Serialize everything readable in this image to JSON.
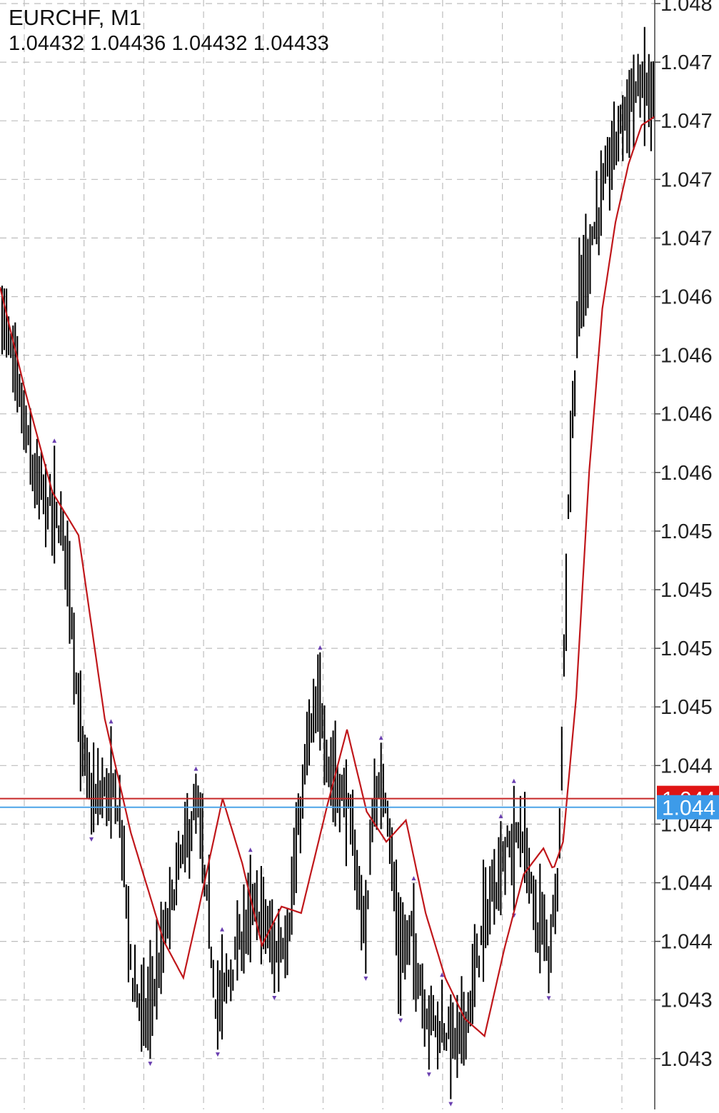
{
  "header": {
    "symbol": "EURCHF, M1",
    "ohlc": [
      "1.04432",
      "1.04436",
      "1.04432",
      "1.04433"
    ]
  },
  "chart_data": {
    "type": "bar",
    "price_tick_labels": [
      "1.048",
      "1.047",
      "1.047",
      "1.047",
      "1.047",
      "1.046",
      "1.046",
      "1.046",
      "1.046",
      "1.045",
      "1.045",
      "1.045",
      "1.045",
      "1.044",
      "1.044",
      "1.044",
      "1.044",
      "1.043",
      "1.043"
    ],
    "bid_label": "1.044",
    "ask_label": "1.044",
    "grid": true,
    "grid_style": "dashed",
    "colors": {
      "bars": "#000000",
      "moving_average": "#c0171b",
      "bid_line": "#c62828",
      "bid_badge": "#e01414",
      "ask_line": "#4da3e8",
      "ask_badge": "#3d9be9",
      "fractal_markers": "#6a3fb0",
      "grid": "#bdbdbd",
      "axis": "#444444"
    },
    "price_profile": [
      [
        0,
        1.04655
      ],
      [
        0.02,
        1.04625
      ],
      [
        0.05,
        1.04575
      ],
      [
        0.08,
        1.0456
      ],
      [
        0.1,
        1.04545
      ],
      [
        0.12,
        1.04455
      ],
      [
        0.14,
        1.04425
      ],
      [
        0.16,
        1.04432
      ],
      [
        0.18,
        1.04425
      ],
      [
        0.2,
        1.04345
      ],
      [
        0.22,
        1.04325
      ],
      [
        0.24,
        1.04348
      ],
      [
        0.27,
        1.04395
      ],
      [
        0.3,
        1.04425
      ],
      [
        0.33,
        1.0433
      ],
      [
        0.36,
        1.04355
      ],
      [
        0.38,
        1.04375
      ],
      [
        0.4,
        1.04375
      ],
      [
        0.42,
        1.04355
      ],
      [
        0.44,
        1.04368
      ],
      [
        0.47,
        1.04455
      ],
      [
        0.49,
        1.04472
      ],
      [
        0.5,
        1.04445
      ],
      [
        0.53,
        1.04425
      ],
      [
        0.55,
        1.04382
      ],
      [
        0.56,
        1.04368
      ],
      [
        0.57,
        1.04428
      ],
      [
        0.59,
        1.04432
      ],
      [
        0.61,
        1.04355
      ],
      [
        0.63,
        1.04365
      ],
      [
        0.65,
        1.0433
      ],
      [
        0.67,
        1.04323
      ],
      [
        0.7,
        1.04315
      ],
      [
        0.72,
        1.04335
      ],
      [
        0.74,
        1.0437
      ],
      [
        0.77,
        1.04402
      ],
      [
        0.8,
        1.04412
      ],
      [
        0.82,
        1.0437
      ],
      [
        0.83,
        1.0437
      ],
      [
        0.84,
        1.04355
      ],
      [
        0.855,
        1.044
      ],
      [
        0.87,
        1.0457
      ],
      [
        0.885,
        1.04655
      ],
      [
        0.9,
        1.0468
      ],
      [
        0.92,
        1.04705
      ],
      [
        0.94,
        1.0473
      ],
      [
        0.96,
        1.0475
      ],
      [
        0.98,
        1.04758
      ],
      [
        1.0,
        1.04755
      ]
    ],
    "moving_average": [
      [
        0,
        1.04665
      ],
      [
        0.04,
        1.04615
      ],
      [
        0.08,
        1.0457
      ],
      [
        0.12,
        1.0455
      ],
      [
        0.16,
        1.04465
      ],
      [
        0.2,
        1.04412
      ],
      [
        0.25,
        1.04362
      ],
      [
        0.28,
        1.04345
      ],
      [
        0.3,
        1.04372
      ],
      [
        0.34,
        1.04428
      ],
      [
        0.37,
        1.04398
      ],
      [
        0.4,
        1.0436
      ],
      [
        0.43,
        1.04378
      ],
      [
        0.46,
        1.04375
      ],
      [
        0.5,
        1.04425
      ],
      [
        0.53,
        1.0446
      ],
      [
        0.56,
        1.04422
      ],
      [
        0.59,
        1.04408
      ],
      [
        0.62,
        1.04418
      ],
      [
        0.65,
        1.04375
      ],
      [
        0.68,
        1.04345
      ],
      [
        0.71,
        1.04326
      ],
      [
        0.74,
        1.04318
      ],
      [
        0.77,
        1.04358
      ],
      [
        0.8,
        1.04393
      ],
      [
        0.83,
        1.04405
      ],
      [
        0.845,
        1.04395
      ],
      [
        0.86,
        1.04408
      ],
      [
        0.88,
        1.04475
      ],
      [
        0.9,
        1.0458
      ],
      [
        0.92,
        1.04655
      ],
      [
        0.94,
        1.04695
      ],
      [
        0.96,
        1.04722
      ],
      [
        0.98,
        1.0474
      ],
      [
        1.0,
        1.04744
      ]
    ],
    "bid": 1.04428,
    "ask": 1.04424,
    "ylim": [
      1.04284,
      1.04798
    ]
  }
}
